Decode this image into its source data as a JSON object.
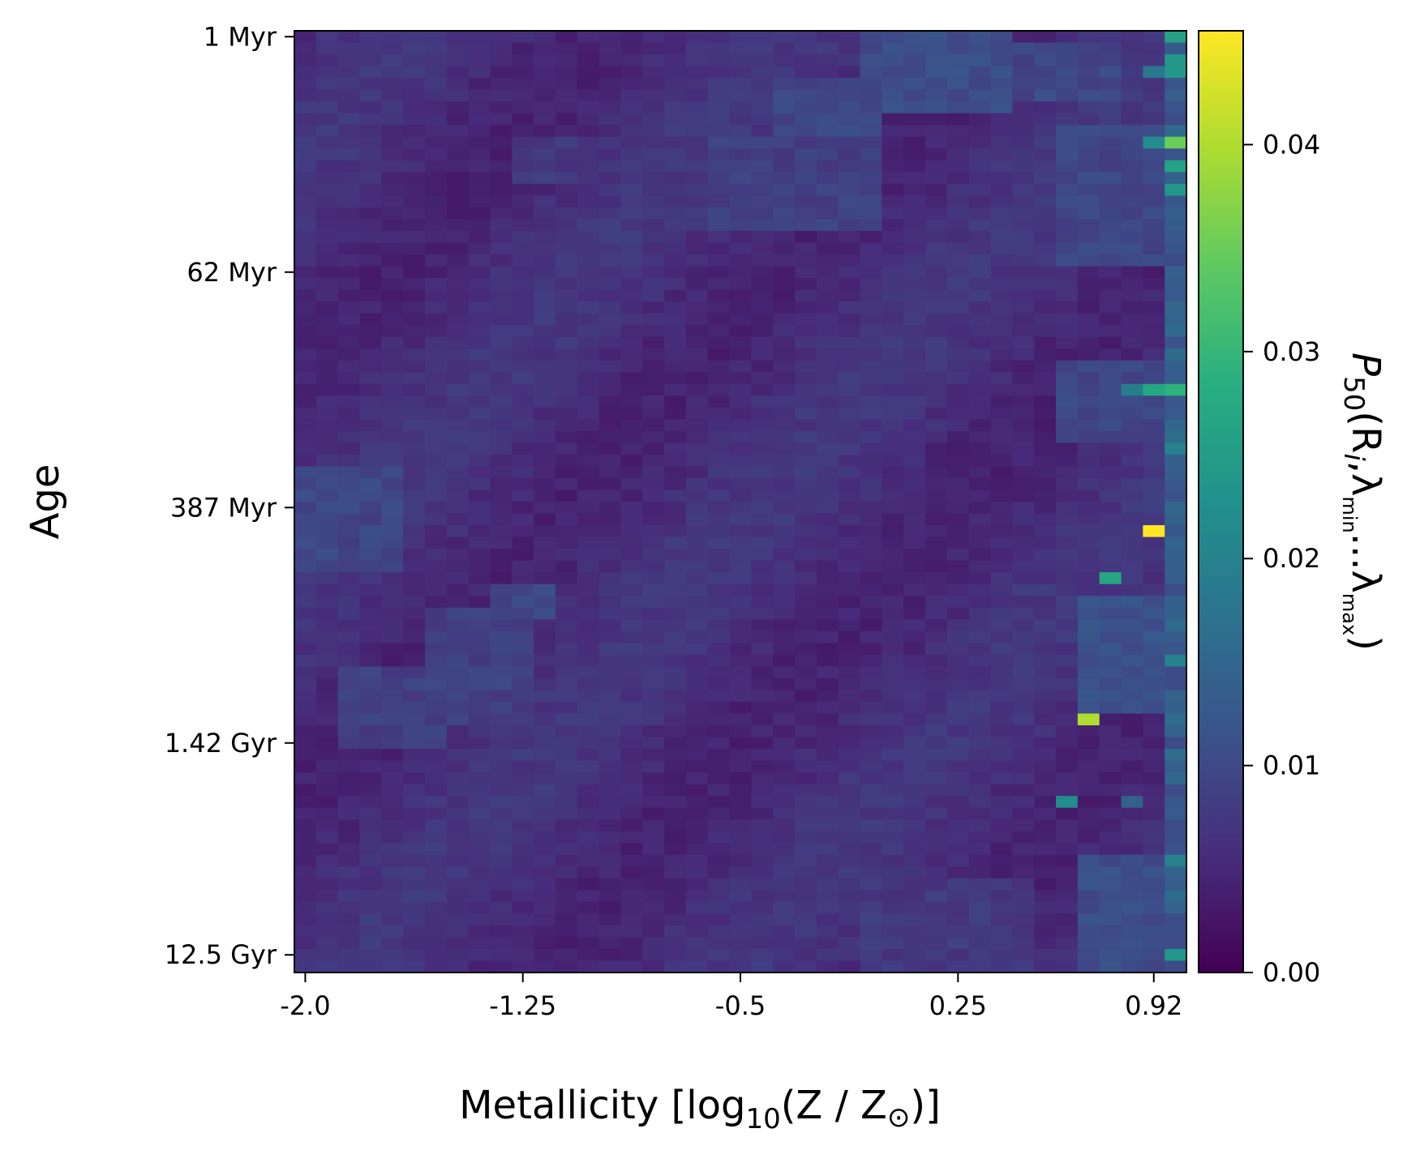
{
  "chart_data": {
    "type": "heatmap",
    "xlabel": {
      "pre": "Metallicity [log",
      "sub": "10",
      "mid": "(Z / Z",
      "sun": "⊙",
      "post": ")]"
    },
    "ylabel": "Age",
    "x_ticks": [
      {
        "label": "-2.0",
        "col": 0.5
      },
      {
        "label": "-1.25",
        "col": 10.5
      },
      {
        "label": "-0.5",
        "col": 20.5
      },
      {
        "label": "0.25",
        "col": 30.5
      },
      {
        "label": "0.92",
        "col": 39.5
      }
    ],
    "y_ticks": [
      {
        "label": "1 Myr",
        "row": 0.5
      },
      {
        "label": "62 Myr",
        "row": 20.5
      },
      {
        "label": "387 Myr",
        "row": 40.5
      },
      {
        "label": "1.42 Gyr",
        "row": 60.5
      },
      {
        "label": "12.5 Gyr",
        "row": 78.5
      }
    ],
    "grid": {
      "cols": 41,
      "rows": 80
    },
    "colorbar": {
      "label": {
        "P": "P",
        "sub50": "50",
        "open": "(R",
        "i": "i",
        "comma": ",λ",
        "min": "min",
        "dots": "...λ",
        "max": "max",
        "close": ")"
      },
      "min": 0.0,
      "max": 0.0455,
      "ticks": [
        {
          "value": 0.0,
          "label": "0.00"
        },
        {
          "value": 0.01,
          "label": "0.01"
        },
        {
          "value": 0.02,
          "label": "0.02"
        },
        {
          "value": 0.03,
          "label": "0.03"
        },
        {
          "value": 0.04,
          "label": "0.04"
        }
      ],
      "colormap": "viridis"
    },
    "regions": [
      {
        "c0": 26,
        "c1": 33,
        "r0": 0,
        "r1": 7,
        "v": 0.011
      },
      {
        "c0": 33,
        "c1": 38,
        "r0": 1,
        "r1": 6,
        "v": 0.01
      },
      {
        "c0": 22,
        "c1": 27,
        "r0": 4,
        "r1": 9,
        "v": 0.01
      },
      {
        "c0": 10,
        "c1": 13,
        "r0": 9,
        "r1": 13,
        "v": 0.008
      },
      {
        "c0": 19,
        "c1": 27,
        "r0": 9,
        "r1": 17,
        "v": 0.009
      },
      {
        "c0": 35,
        "c1": 41,
        "r0": 8,
        "r1": 20,
        "v": 0.01
      },
      {
        "c0": 35,
        "c1": 41,
        "r0": 28,
        "r1": 35,
        "v": 0.01
      },
      {
        "c0": 0,
        "c1": 5,
        "r0": 37,
        "r1": 46,
        "v": 0.01
      },
      {
        "c0": 9,
        "c1": 12,
        "r0": 47,
        "r1": 50,
        "v": 0.01
      },
      {
        "c0": 6,
        "c1": 11,
        "r0": 49,
        "r1": 59,
        "v": 0.009
      },
      {
        "c0": 2,
        "c1": 7,
        "r0": 54,
        "r1": 61,
        "v": 0.009
      },
      {
        "c0": 36,
        "c1": 41,
        "r0": 48,
        "r1": 58,
        "v": 0.012
      },
      {
        "c0": 26,
        "c1": 34,
        "r0": 72,
        "r1": 80,
        "v": 0.008
      },
      {
        "c0": 36,
        "c1": 41,
        "r0": 70,
        "r1": 80,
        "v": 0.011
      }
    ],
    "columns": [
      {
        "c": 40,
        "r0": 0,
        "r1": 80,
        "v": 0.013
      }
    ],
    "cells": [
      {
        "c": 40,
        "r": 0,
        "v": 0.026
      },
      {
        "c": 40,
        "r": 2,
        "v": 0.024
      },
      {
        "c": 40,
        "r": 3,
        "v": 0.024
      },
      {
        "c": 39,
        "r": 3,
        "v": 0.018
      },
      {
        "c": 39,
        "r": 9,
        "v": 0.022
      },
      {
        "c": 40,
        "r": 9,
        "v": 0.035
      },
      {
        "c": 40,
        "r": 11,
        "v": 0.026
      },
      {
        "c": 40,
        "r": 13,
        "v": 0.024
      },
      {
        "c": 38,
        "r": 30,
        "v": 0.019
      },
      {
        "c": 39,
        "r": 30,
        "v": 0.027
      },
      {
        "c": 40,
        "r": 30,
        "v": 0.029
      },
      {
        "c": 40,
        "r": 35,
        "v": 0.02
      },
      {
        "c": 39,
        "r": 42,
        "v": 0.0455
      },
      {
        "c": 37,
        "r": 46,
        "v": 0.027
      },
      {
        "c": 36,
        "r": 58,
        "v": 0.04
      },
      {
        "c": 35,
        "r": 65,
        "v": 0.022
      },
      {
        "c": 38,
        "r": 65,
        "v": 0.014
      },
      {
        "c": 40,
        "r": 78,
        "v": 0.024
      },
      {
        "c": 40,
        "r": 70,
        "v": 0.02
      },
      {
        "c": 40,
        "r": 53,
        "v": 0.02
      }
    ]
  }
}
